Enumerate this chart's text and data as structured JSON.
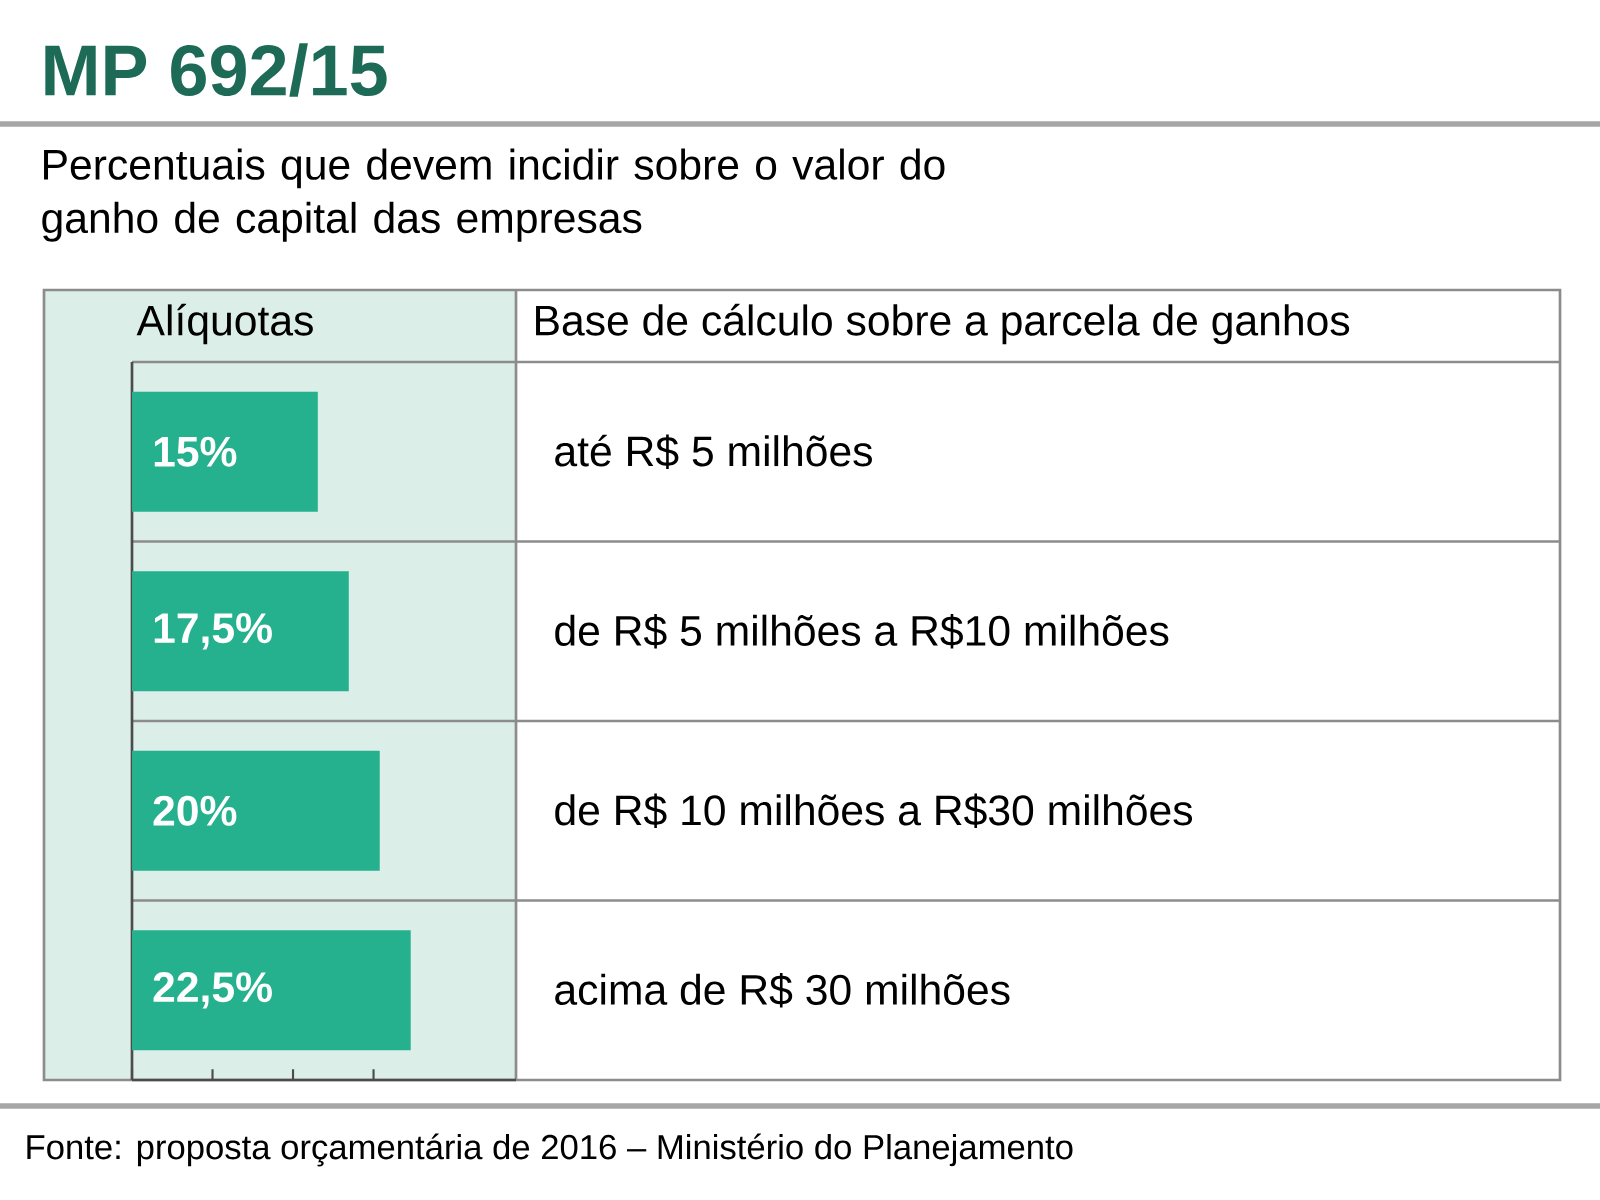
{
  "chart_data": {
    "type": "bar",
    "orientation": "horizontal",
    "title": "MP 692/15",
    "subtitle": "Percentuais que devem incidir sobre o valor do ganho de capital das empresas",
    "xlabel": "Alíquotas",
    "ylabel": "Base de cálculo sobre a parcela de ganhos",
    "categories": [
      "até R$ 5 milhões",
      "de R$ 5 milhões a R$10 milhões",
      "de R$ 10 milhões a R$30 milhões",
      "acima de R$ 30 milhões"
    ],
    "values": [
      15,
      17.5,
      20,
      22.5
    ],
    "value_labels": [
      "15%",
      "17,5%",
      "20%",
      "22,5%"
    ],
    "color": "#25b08e",
    "xlim": [
      0,
      31
    ],
    "xticks": [
      {
        "value": 0,
        "label": null
      },
      {
        "value": 6.5,
        "label": null
      },
      {
        "value": 13,
        "label": null
      },
      {
        "value": 19.5,
        "label": null
      }
    ],
    "annotations": [
      "Fonte: proposta orçamentária de 2016 – Ministério do Planejamento"
    ]
  }
}
